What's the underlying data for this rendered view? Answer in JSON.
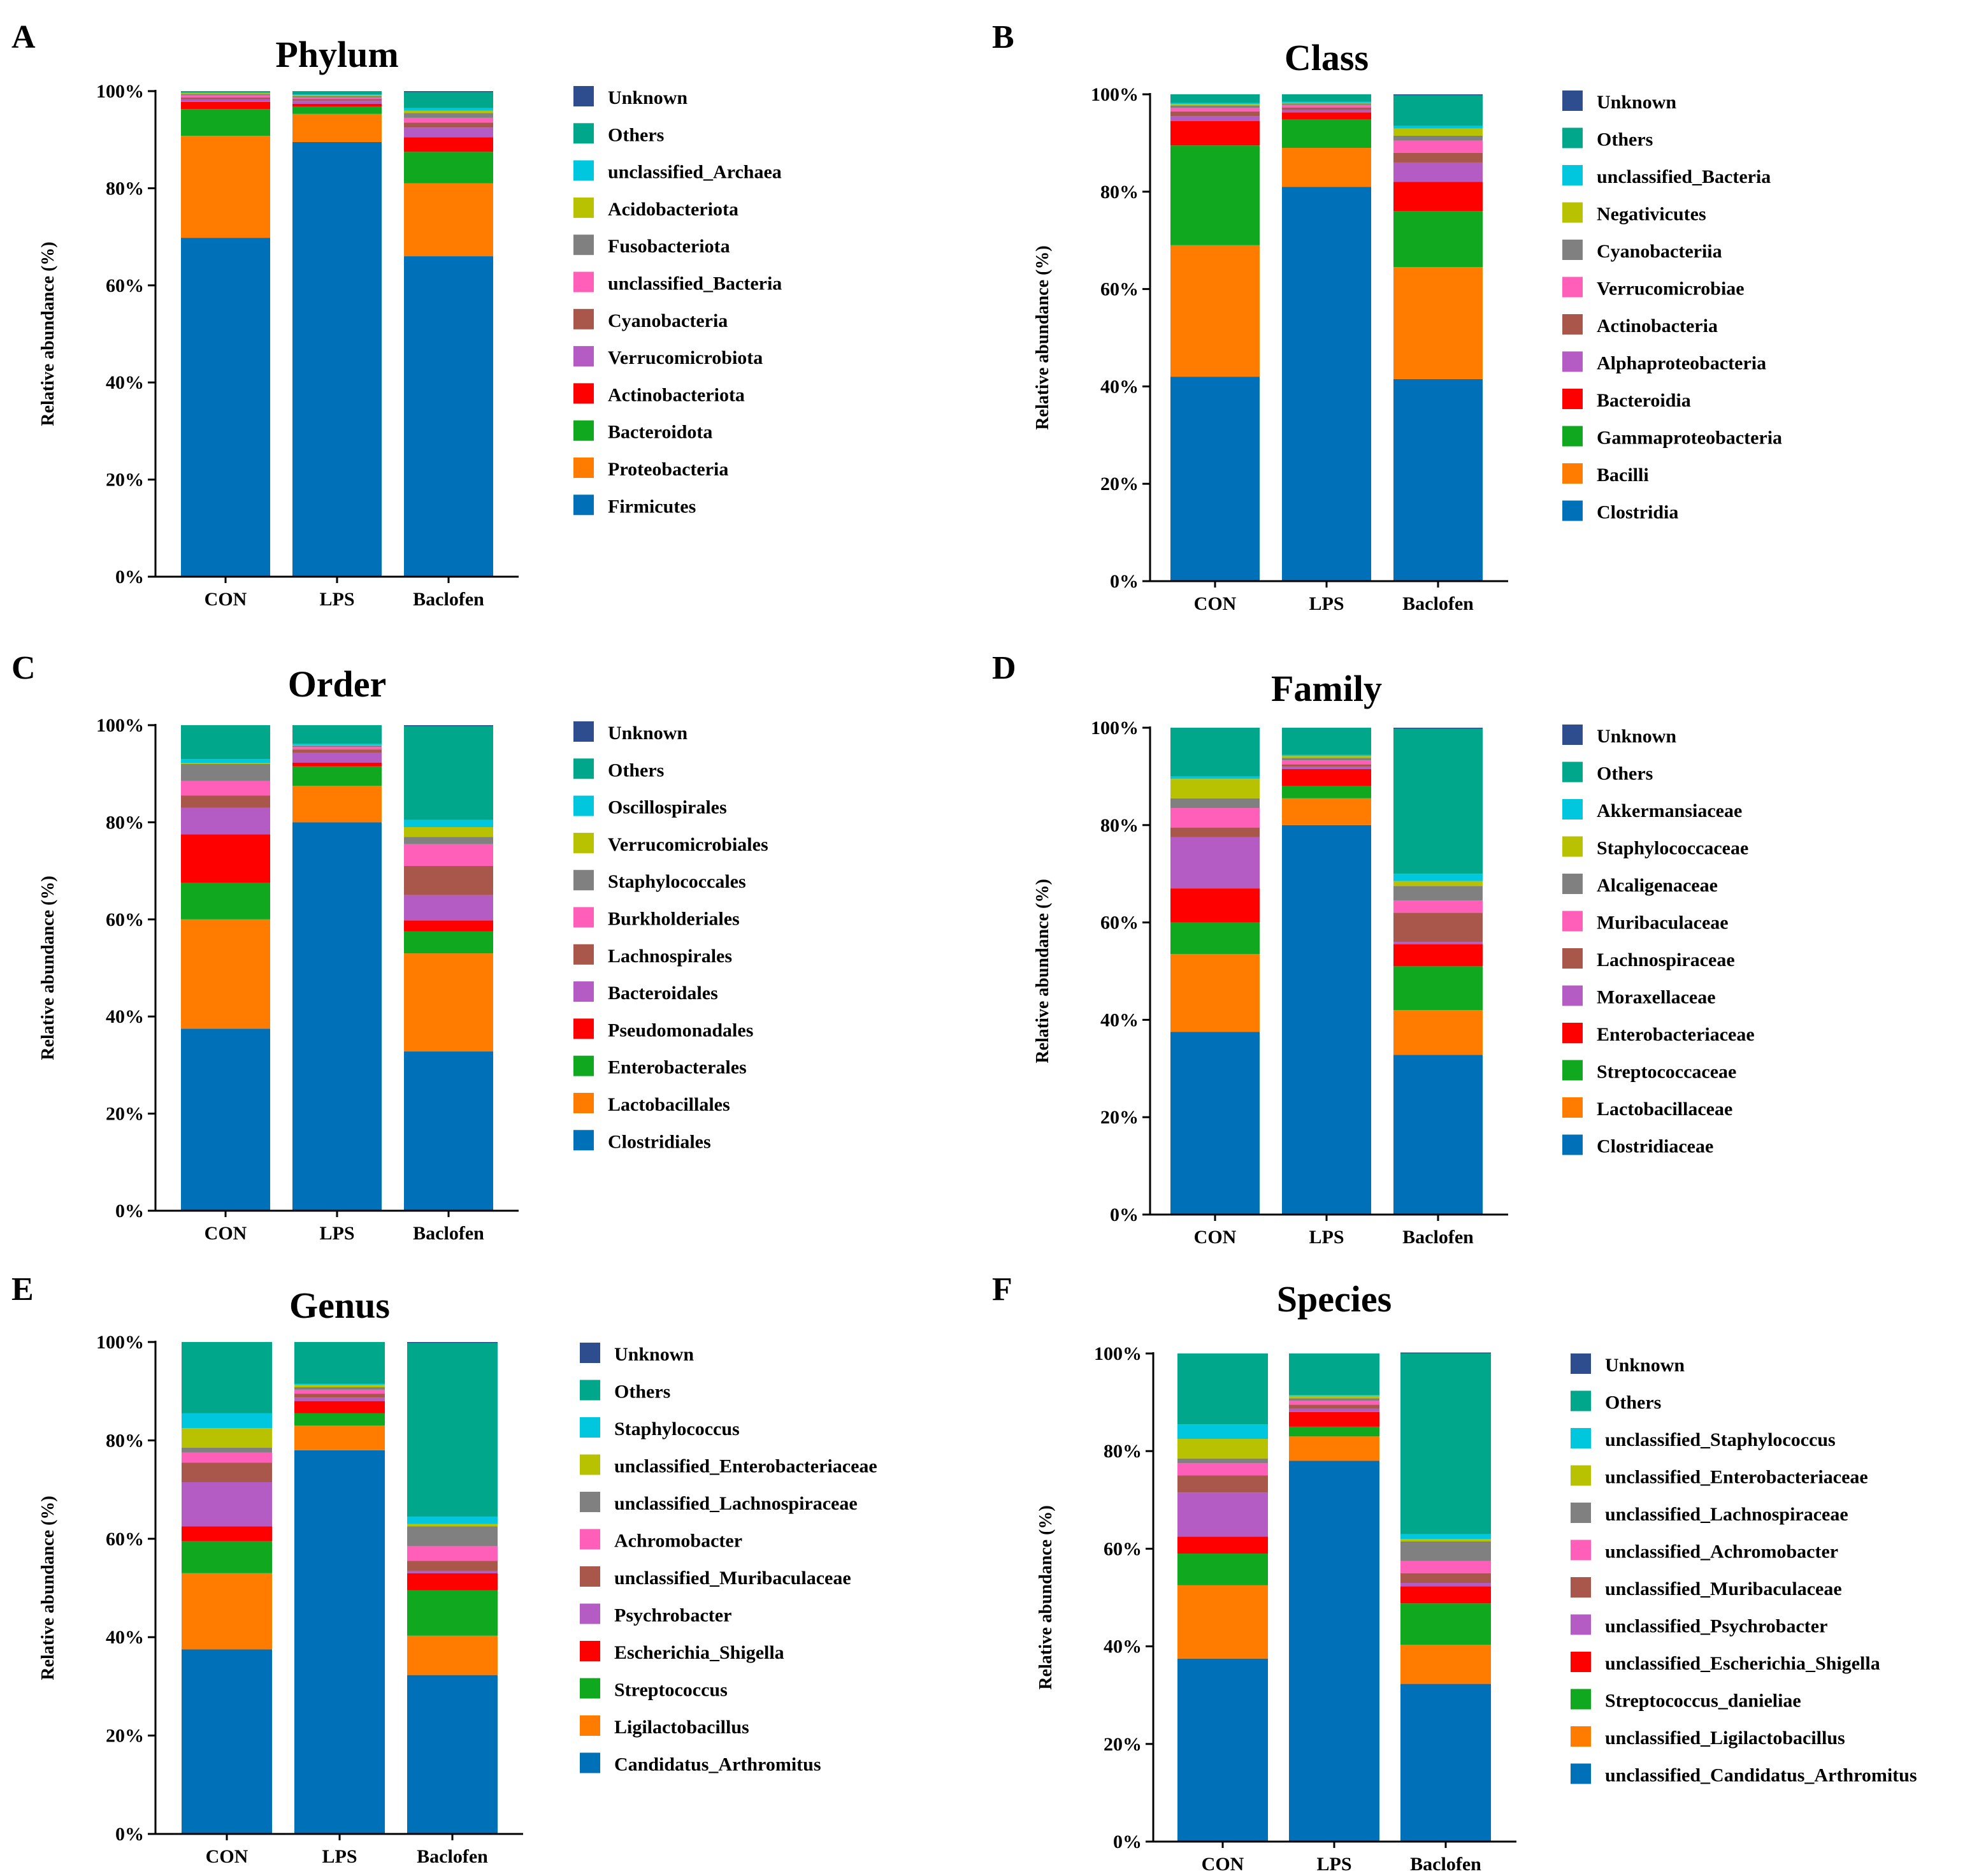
{
  "colors": {
    "Unknown": "#2e4d8f",
    "Others": "#00a78a",
    "c3": "#00c6de",
    "c4": "#b8c200",
    "c5": "#808080",
    "c6": "#ff5fb8",
    "c7": "#a9574b",
    "c8": "#b45cc3",
    "c9": "#ff0000",
    "c10": "#10a81f",
    "c11": "#ff7c00",
    "c12": "#0070b8"
  },
  "chart_data": [
    {
      "panel": "A",
      "type": "bar",
      "stacked": true,
      "title": "Phylum",
      "ylabel": "Relative abundance (%)",
      "yticks": [
        "0%",
        "20%",
        "40%",
        "60%",
        "80%",
        "100%"
      ],
      "ylim": [
        0,
        100
      ],
      "categories": [
        "CON",
        "LPS",
        "Baclofen"
      ],
      "series": [
        {
          "name": "Firmicutes",
          "color": "#0070b8",
          "values": [
            69.8,
            89.5,
            66.0
          ]
        },
        {
          "name": "Proteobacteria",
          "color": "#ff7c00",
          "values": [
            21.0,
            5.8,
            15.0
          ]
        },
        {
          "name": "Bacteroidota",
          "color": "#10a81f",
          "values": [
            5.5,
            1.5,
            6.5
          ]
        },
        {
          "name": "Actinobacteriota",
          "color": "#ff0000",
          "values": [
            1.5,
            0.6,
            3.0
          ]
        },
        {
          "name": "Verrucomicrobiota",
          "color": "#b45cc3",
          "values": [
            0.5,
            0.6,
            2.0
          ]
        },
        {
          "name": "Cyanobacteria",
          "color": "#a9574b",
          "values": [
            0.4,
            0.4,
            1.0
          ]
        },
        {
          "name": "unclassified_Bacteria",
          "color": "#ff5fb8",
          "values": [
            0.4,
            0.3,
            1.0
          ]
        },
        {
          "name": "Fusobacteriota",
          "color": "#808080",
          "values": [
            0.3,
            0.3,
            1.0
          ]
        },
        {
          "name": "Acidobacteriota",
          "color": "#b8c200",
          "values": [
            0.2,
            0.2,
            0.5
          ]
        },
        {
          "name": "unclassified_Archaea",
          "color": "#00c6de",
          "values": [
            0.1,
            0.1,
            0.5
          ]
        },
        {
          "name": "Others",
          "color": "#00a78a",
          "values": [
            0.3,
            0.7,
            3.3
          ]
        },
        {
          "name": "Unknown",
          "color": "#2e4d8f",
          "values": [
            0.0,
            0.0,
            0.2
          ]
        }
      ]
    },
    {
      "panel": "B",
      "type": "bar",
      "stacked": true,
      "title": "Class",
      "ylabel": "Relative abundance (%)",
      "yticks": [
        "0%",
        "20%",
        "40%",
        "60%",
        "80%",
        "100%"
      ],
      "ylim": [
        0,
        100
      ],
      "categories": [
        "CON",
        "LPS",
        "Baclofen"
      ],
      "series": [
        {
          "name": "Clostridia",
          "color": "#0070b8",
          "values": [
            42.0,
            81.0,
            41.5
          ]
        },
        {
          "name": "Bacilli",
          "color": "#ff7c00",
          "values": [
            27.0,
            8.0,
            23.0
          ]
        },
        {
          "name": "Gammaproteobacteria",
          "color": "#10a81f",
          "values": [
            20.5,
            5.8,
            11.5
          ]
        },
        {
          "name": "Bacteroidia",
          "color": "#ff0000",
          "values": [
            5.0,
            1.5,
            6.0
          ]
        },
        {
          "name": "Alphaproteobacteria",
          "color": "#b45cc3",
          "values": [
            1.0,
            0.5,
            4.0
          ]
        },
        {
          "name": "Actinobacteria",
          "color": "#a9574b",
          "values": [
            1.0,
            0.5,
            2.0
          ]
        },
        {
          "name": "Verrucomicrobiae",
          "color": "#ff5fb8",
          "values": [
            0.7,
            0.5,
            2.5
          ]
        },
        {
          "name": "Cyanobacteriia",
          "color": "#808080",
          "values": [
            0.5,
            0.3,
            1.0
          ]
        },
        {
          "name": "Negativicutes",
          "color": "#b8c200",
          "values": [
            0.3,
            0.2,
            1.5
          ]
        },
        {
          "name": "unclassified_Bacteria",
          "color": "#00c6de",
          "values": [
            0.2,
            0.2,
            0.5
          ]
        },
        {
          "name": "Others",
          "color": "#00a78a",
          "values": [
            1.8,
            1.5,
            6.3
          ]
        },
        {
          "name": "Unknown",
          "color": "#2e4d8f",
          "values": [
            0.0,
            0.0,
            0.2
          ]
        }
      ]
    },
    {
      "panel": "C",
      "type": "bar",
      "stacked": true,
      "title": "Order",
      "ylabel": "Relative abundance (%)",
      "yticks": [
        "0%",
        "20%",
        "40%",
        "60%",
        "80%",
        "100%"
      ],
      "ylim": [
        0,
        100
      ],
      "categories": [
        "CON",
        "LPS",
        "Baclofen"
      ],
      "series": [
        {
          "name": "Clostridiales",
          "color": "#0070b8",
          "values": [
            37.5,
            80.0,
            32.8
          ]
        },
        {
          "name": "Lactobacillales",
          "color": "#ff7c00",
          "values": [
            22.5,
            7.5,
            20.2
          ]
        },
        {
          "name": "Enterobacterales",
          "color": "#10a81f",
          "values": [
            7.5,
            4.0,
            4.5
          ]
        },
        {
          "name": "Pseudomonadales",
          "color": "#ff0000",
          "values": [
            10.0,
            0.8,
            2.3
          ]
        },
        {
          "name": "Bacteroidales",
          "color": "#b45cc3",
          "values": [
            5.5,
            2.0,
            5.2
          ]
        },
        {
          "name": "Lachnospirales",
          "color": "#a9574b",
          "values": [
            2.5,
            0.7,
            6.0
          ]
        },
        {
          "name": "Burkholderiales",
          "color": "#ff5fb8",
          "values": [
            3.0,
            0.5,
            4.5
          ]
        },
        {
          "name": "Staphylococcales",
          "color": "#808080",
          "values": [
            3.5,
            0.3,
            1.5
          ]
        },
        {
          "name": "Verrucomicrobiales",
          "color": "#b8c200",
          "values": [
            0.2,
            0.1,
            2.0
          ]
        },
        {
          "name": "Oscillospirales",
          "color": "#00c6de",
          "values": [
            0.8,
            0.3,
            1.5
          ]
        },
        {
          "name": "Others",
          "color": "#00a78a",
          "values": [
            7.0,
            3.8,
            19.3
          ]
        },
        {
          "name": "Unknown",
          "color": "#2e4d8f",
          "values": [
            0.0,
            0.0,
            0.2
          ]
        }
      ]
    },
    {
      "panel": "D",
      "type": "bar",
      "stacked": true,
      "title": "Family",
      "ylabel": "Relative abundance (%)",
      "yticks": [
        "0%",
        "20%",
        "40%",
        "60%",
        "80%",
        "100%"
      ],
      "ylim": [
        0,
        100
      ],
      "categories": [
        "CON",
        "LPS",
        "Baclofen"
      ],
      "series": [
        {
          "name": "Clostridiaceae",
          "color": "#0070b8",
          "values": [
            37.5,
            80.0,
            32.8
          ]
        },
        {
          "name": "Lactobacillaceae",
          "color": "#ff7c00",
          "values": [
            16.0,
            5.5,
            9.2
          ]
        },
        {
          "name": "Streptococcaceae",
          "color": "#10a81f",
          "values": [
            6.5,
            2.5,
            9.0
          ]
        },
        {
          "name": "Enterobacteriaceae",
          "color": "#ff0000",
          "values": [
            7.0,
            3.5,
            4.5
          ]
        },
        {
          "name": "Moraxellaceae",
          "color": "#b45cc3",
          "values": [
            10.5,
            0.5,
            0.5
          ]
        },
        {
          "name": "Lachnospiraceae",
          "color": "#a9574b",
          "values": [
            2.0,
            0.5,
            6.0
          ]
        },
        {
          "name": "Muribaculaceae",
          "color": "#ff5fb8",
          "values": [
            4.0,
            0.8,
            2.5
          ]
        },
        {
          "name": "Alcaligenaceae",
          "color": "#808080",
          "values": [
            2.0,
            0.5,
            3.0
          ]
        },
        {
          "name": "Staphylococcaceae",
          "color": "#b8c200",
          "values": [
            4.0,
            0.4,
            1.0
          ]
        },
        {
          "name": "Akkermansiaceae",
          "color": "#00c6de",
          "values": [
            0.5,
            0.2,
            1.5
          ]
        },
        {
          "name": "Others",
          "color": "#00a78a",
          "values": [
            10.0,
            5.6,
            29.8
          ]
        },
        {
          "name": "Unknown",
          "color": "#2e4d8f",
          "values": [
            0.0,
            0.0,
            0.2
          ]
        }
      ]
    },
    {
      "panel": "E",
      "type": "bar",
      "stacked": true,
      "title": "Genus",
      "ylabel": "Relative abundance (%)",
      "yticks": [
        "0%",
        "20%",
        "40%",
        "60%",
        "80%",
        "100%"
      ],
      "ylim": [
        0,
        100
      ],
      "categories": [
        "CON",
        "LPS",
        "Baclofen"
      ],
      "series": [
        {
          "name": "Candidatus_Arthromitus",
          "color": "#0070b8",
          "values": [
            37.5,
            78.0,
            32.3
          ]
        },
        {
          "name": "Ligilactobacillus",
          "color": "#ff7c00",
          "values": [
            15.5,
            5.0,
            8.0
          ]
        },
        {
          "name": "Streptococcus",
          "color": "#10a81f",
          "values": [
            6.5,
            2.5,
            9.2
          ]
        },
        {
          "name": "Escherichia_Shigella",
          "color": "#ff0000",
          "values": [
            3.0,
            2.5,
            3.5
          ]
        },
        {
          "name": "Psychrobacter",
          "color": "#b45cc3",
          "values": [
            9.0,
            0.7,
            0.5
          ]
        },
        {
          "name": "unclassified_Muribaculaceae",
          "color": "#a9574b",
          "values": [
            4.0,
            0.8,
            2.0
          ]
        },
        {
          "name": "Achromobacter",
          "color": "#ff5fb8",
          "values": [
            2.0,
            0.8,
            3.0
          ]
        },
        {
          "name": "unclassified_Lachnospiraceae",
          "color": "#808080",
          "values": [
            1.0,
            0.5,
            4.0
          ]
        },
        {
          "name": "unclassified_Enterobacteriaceae",
          "color": "#b8c200",
          "values": [
            4.0,
            0.5,
            0.5
          ]
        },
        {
          "name": "Staphylococcus",
          "color": "#00c6de",
          "values": [
            3.0,
            0.2,
            1.5
          ]
        },
        {
          "name": "Others",
          "color": "#00a78a",
          "values": [
            14.5,
            8.5,
            35.3
          ]
        },
        {
          "name": "Unknown",
          "color": "#2e4d8f",
          "values": [
            0.0,
            0.0,
            0.2
          ]
        }
      ]
    },
    {
      "panel": "F",
      "type": "bar",
      "stacked": true,
      "title": "Species",
      "ylabel": "Relative abundance (%)",
      "yticks": [
        "0%",
        "20%",
        "40%",
        "60%",
        "80%",
        "100%"
      ],
      "ylim": [
        0,
        100
      ],
      "categories": [
        "CON",
        "LPS",
        "Baclofen"
      ],
      "series": [
        {
          "name": "unclassified_Candidatus_Arthromitus",
          "color": "#0070b8",
          "values": [
            37.5,
            78.0,
            32.3
          ]
        },
        {
          "name": "unclassified_Ligilactobacillus",
          "color": "#ff7c00",
          "values": [
            15.0,
            5.0,
            8.0
          ]
        },
        {
          "name": "Streptococcus_danieliae",
          "color": "#10a81f",
          "values": [
            6.5,
            2.0,
            8.5
          ]
        },
        {
          "name": "unclassified_Escherichia_Shigella",
          "color": "#ff0000",
          "values": [
            3.5,
            3.0,
            3.5
          ]
        },
        {
          "name": "unclassified_Psychrobacter",
          "color": "#b45cc3",
          "values": [
            9.0,
            0.7,
            0.7
          ]
        },
        {
          "name": "unclassified_Muribaculaceae",
          "color": "#a9574b",
          "values": [
            3.5,
            0.8,
            2.0
          ]
        },
        {
          "name": "unclassified_Achromobacter",
          "color": "#ff5fb8",
          "values": [
            2.5,
            0.8,
            2.5
          ]
        },
        {
          "name": "unclassified_Lachnospiraceae",
          "color": "#808080",
          "values": [
            1.0,
            0.5,
            4.0
          ]
        },
        {
          "name": "unclassified_Enterobacteriaceae",
          "color": "#b8c200",
          "values": [
            4.0,
            0.5,
            0.5
          ]
        },
        {
          "name": "unclassified_Staphylococcus",
          "color": "#00c6de",
          "values": [
            3.0,
            0.2,
            1.0
          ]
        },
        {
          "name": "Others",
          "color": "#00a78a",
          "values": [
            14.5,
            8.5,
            37.0
          ]
        },
        {
          "name": "Unknown",
          "color": "#2e4d8f",
          "values": [
            0.0,
            0.0,
            0.2
          ]
        }
      ]
    }
  ]
}
